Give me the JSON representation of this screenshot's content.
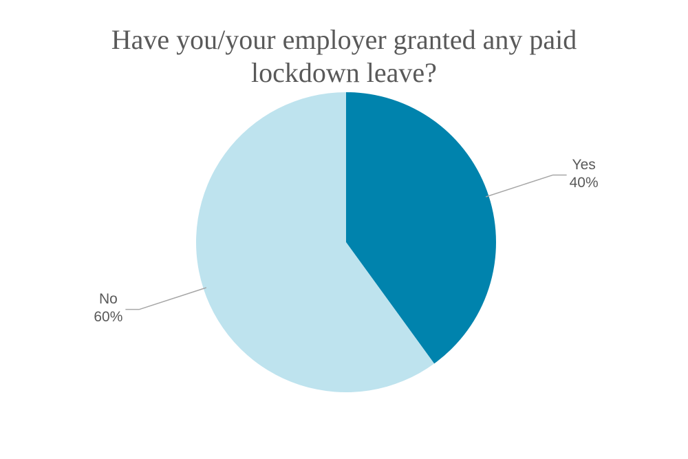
{
  "chart_data": {
    "type": "pie",
    "title": "Have you/your employer granted any paid lockdown leave?",
    "categories": [
      "Yes",
      "No"
    ],
    "values": [
      40,
      60
    ],
    "value_labels": [
      "40%",
      "60%"
    ],
    "colors": [
      "#0083ad",
      "#bee3ee"
    ]
  }
}
